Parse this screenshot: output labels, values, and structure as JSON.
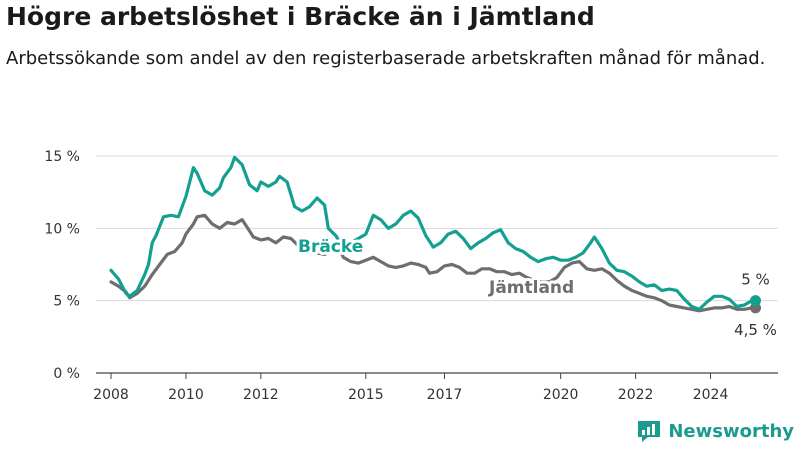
{
  "title": "Högre arbetslöshet i Bräcke än i Jämtland",
  "subtitle": "Arbetssökande som andel av den registerbaserade arbetskraften månad för månad.",
  "brand": {
    "name": "Newsworthy",
    "color": "#1a9b8e"
  },
  "chart_data": {
    "type": "line",
    "xlim": [
      2007.6,
      2025.8
    ],
    "ylim": [
      0,
      15
    ],
    "x_ticks": [
      {
        "value": 2008,
        "label": "2008"
      },
      {
        "value": 2010,
        "label": "2010"
      },
      {
        "value": 2012,
        "label": "2012"
      },
      {
        "value": 2014.8,
        "label": "2015"
      },
      {
        "value": 2016.9,
        "label": "2017"
      },
      {
        "value": 2020,
        "label": "2020"
      },
      {
        "value": 2022,
        "label": "2022"
      },
      {
        "value": 2024,
        "label": "2024"
      }
    ],
    "y_ticks": [
      {
        "value": 0,
        "label": "0 %"
      },
      {
        "value": 5,
        "label": "5 %"
      },
      {
        "value": 10,
        "label": "10 %"
      },
      {
        "value": 15,
        "label": "15 %"
      }
    ],
    "grid": true,
    "series": [
      {
        "name": "Jämtland",
        "label": "Jämtland",
        "color": "#6e6e6e",
        "end_label": "4,5 %",
        "points": [
          [
            2008.0,
            6.3
          ],
          [
            2008.2,
            6.0
          ],
          [
            2008.4,
            5.6
          ],
          [
            2008.5,
            5.2
          ],
          [
            2008.7,
            5.5
          ],
          [
            2008.9,
            6.0
          ],
          [
            2009.1,
            6.8
          ],
          [
            2009.3,
            7.5
          ],
          [
            2009.5,
            8.2
          ],
          [
            2009.7,
            8.4
          ],
          [
            2009.9,
            9.0
          ],
          [
            2010.0,
            9.6
          ],
          [
            2010.2,
            10.3
          ],
          [
            2010.3,
            10.8
          ],
          [
            2010.5,
            10.9
          ],
          [
            2010.7,
            10.3
          ],
          [
            2010.9,
            10.0
          ],
          [
            2011.1,
            10.4
          ],
          [
            2011.3,
            10.3
          ],
          [
            2011.5,
            10.6
          ],
          [
            2011.6,
            10.2
          ],
          [
            2011.8,
            9.4
          ],
          [
            2012.0,
            9.2
          ],
          [
            2012.2,
            9.3
          ],
          [
            2012.4,
            9.0
          ],
          [
            2012.6,
            9.4
          ],
          [
            2012.8,
            9.3
          ],
          [
            2013.0,
            8.8
          ],
          [
            2013.2,
            8.6
          ],
          [
            2013.4,
            8.3
          ],
          [
            2013.5,
            8.3
          ],
          [
            2013.7,
            8.2
          ],
          [
            2013.9,
            8.4
          ],
          [
            2014.1,
            8.6
          ],
          [
            2014.2,
            8.0
          ],
          [
            2014.4,
            7.7
          ],
          [
            2014.6,
            7.6
          ],
          [
            2014.8,
            7.8
          ],
          [
            2015.0,
            8.0
          ],
          [
            2015.2,
            7.7
          ],
          [
            2015.4,
            7.4
          ],
          [
            2015.6,
            7.3
          ],
          [
            2015.8,
            7.4
          ],
          [
            2016.0,
            7.6
          ],
          [
            2016.2,
            7.5
          ],
          [
            2016.4,
            7.3
          ],
          [
            2016.5,
            6.9
          ],
          [
            2016.7,
            7.0
          ],
          [
            2016.9,
            7.4
          ],
          [
            2017.1,
            7.5
          ],
          [
            2017.3,
            7.3
          ],
          [
            2017.5,
            6.9
          ],
          [
            2017.7,
            6.9
          ],
          [
            2017.9,
            7.2
          ],
          [
            2018.1,
            7.2
          ],
          [
            2018.3,
            7.0
          ],
          [
            2018.5,
            7.0
          ],
          [
            2018.7,
            6.8
          ],
          [
            2018.9,
            6.9
          ],
          [
            2019.1,
            6.6
          ],
          [
            2019.3,
            6.4
          ],
          [
            2019.5,
            6.3
          ],
          [
            2019.7,
            6.3
          ],
          [
            2019.9,
            6.6
          ],
          [
            2020.1,
            7.3
          ],
          [
            2020.3,
            7.6
          ],
          [
            2020.5,
            7.7
          ],
          [
            2020.7,
            7.2
          ],
          [
            2020.9,
            7.1
          ],
          [
            2021.1,
            7.2
          ],
          [
            2021.3,
            6.9
          ],
          [
            2021.5,
            6.4
          ],
          [
            2021.7,
            6.0
          ],
          [
            2021.9,
            5.7
          ],
          [
            2022.1,
            5.5
          ],
          [
            2022.3,
            5.3
          ],
          [
            2022.5,
            5.2
          ],
          [
            2022.7,
            5.0
          ],
          [
            2022.9,
            4.7
          ],
          [
            2023.1,
            4.6
          ],
          [
            2023.3,
            4.5
          ],
          [
            2023.5,
            4.4
          ],
          [
            2023.7,
            4.3
          ],
          [
            2023.9,
            4.4
          ],
          [
            2024.1,
            4.5
          ],
          [
            2024.3,
            4.5
          ],
          [
            2024.5,
            4.6
          ],
          [
            2024.7,
            4.4
          ],
          [
            2024.9,
            4.4
          ],
          [
            2025.1,
            4.5
          ],
          [
            2025.2,
            4.5
          ]
        ]
      },
      {
        "name": "Bräcke",
        "label": "Bräcke",
        "color": "#14a090",
        "end_label": "5 %",
        "points": [
          [
            2008.0,
            7.1
          ],
          [
            2008.2,
            6.5
          ],
          [
            2008.4,
            5.5
          ],
          [
            2008.5,
            5.3
          ],
          [
            2008.7,
            5.7
          ],
          [
            2008.9,
            6.8
          ],
          [
            2009.0,
            7.5
          ],
          [
            2009.1,
            9.0
          ],
          [
            2009.2,
            9.5
          ],
          [
            2009.4,
            10.8
          ],
          [
            2009.6,
            10.9
          ],
          [
            2009.8,
            10.8
          ],
          [
            2010.0,
            12.2
          ],
          [
            2010.1,
            13.2
          ],
          [
            2010.2,
            14.2
          ],
          [
            2010.3,
            13.8
          ],
          [
            2010.5,
            12.6
          ],
          [
            2010.7,
            12.3
          ],
          [
            2010.9,
            12.8
          ],
          [
            2011.0,
            13.5
          ],
          [
            2011.2,
            14.2
          ],
          [
            2011.3,
            14.9
          ],
          [
            2011.5,
            14.4
          ],
          [
            2011.7,
            13.0
          ],
          [
            2011.9,
            12.6
          ],
          [
            2012.0,
            13.2
          ],
          [
            2012.2,
            12.9
          ],
          [
            2012.4,
            13.2
          ],
          [
            2012.5,
            13.6
          ],
          [
            2012.7,
            13.2
          ],
          [
            2012.9,
            11.5
          ],
          [
            2013.1,
            11.2
          ],
          [
            2013.3,
            11.5
          ],
          [
            2013.5,
            12.1
          ],
          [
            2013.7,
            11.6
          ],
          [
            2013.8,
            10.0
          ],
          [
            2014.0,
            9.5
          ],
          [
            2014.2,
            8.6
          ],
          [
            2014.4,
            9.0
          ],
          [
            2014.6,
            9.3
          ],
          [
            2014.8,
            9.6
          ],
          [
            2015.0,
            10.9
          ],
          [
            2015.2,
            10.6
          ],
          [
            2015.4,
            10.0
          ],
          [
            2015.6,
            10.3
          ],
          [
            2015.8,
            10.9
          ],
          [
            2016.0,
            11.2
          ],
          [
            2016.2,
            10.7
          ],
          [
            2016.4,
            9.5
          ],
          [
            2016.6,
            8.7
          ],
          [
            2016.8,
            9.0
          ],
          [
            2017.0,
            9.6
          ],
          [
            2017.2,
            9.8
          ],
          [
            2017.4,
            9.3
          ],
          [
            2017.6,
            8.6
          ],
          [
            2017.8,
            9.0
          ],
          [
            2018.0,
            9.3
          ],
          [
            2018.2,
            9.7
          ],
          [
            2018.4,
            9.9
          ],
          [
            2018.6,
            9.0
          ],
          [
            2018.8,
            8.6
          ],
          [
            2019.0,
            8.4
          ],
          [
            2019.2,
            8.0
          ],
          [
            2019.4,
            7.7
          ],
          [
            2019.6,
            7.9
          ],
          [
            2019.8,
            8.0
          ],
          [
            2020.0,
            7.8
          ],
          [
            2020.2,
            7.8
          ],
          [
            2020.4,
            8.0
          ],
          [
            2020.6,
            8.3
          ],
          [
            2020.8,
            9.0
          ],
          [
            2020.9,
            9.4
          ],
          [
            2021.1,
            8.6
          ],
          [
            2021.3,
            7.6
          ],
          [
            2021.5,
            7.1
          ],
          [
            2021.7,
            7.0
          ],
          [
            2021.9,
            6.7
          ],
          [
            2022.1,
            6.3
          ],
          [
            2022.3,
            6.0
          ],
          [
            2022.5,
            6.1
          ],
          [
            2022.7,
            5.7
          ],
          [
            2022.9,
            5.8
          ],
          [
            2023.1,
            5.7
          ],
          [
            2023.3,
            5.1
          ],
          [
            2023.5,
            4.6
          ],
          [
            2023.7,
            4.4
          ],
          [
            2023.9,
            4.9
          ],
          [
            2024.1,
            5.3
          ],
          [
            2024.3,
            5.3
          ],
          [
            2024.5,
            5.1
          ],
          [
            2024.7,
            4.6
          ],
          [
            2024.9,
            4.7
          ],
          [
            2025.1,
            5.0
          ],
          [
            2025.2,
            5.0
          ]
        ]
      }
    ]
  }
}
